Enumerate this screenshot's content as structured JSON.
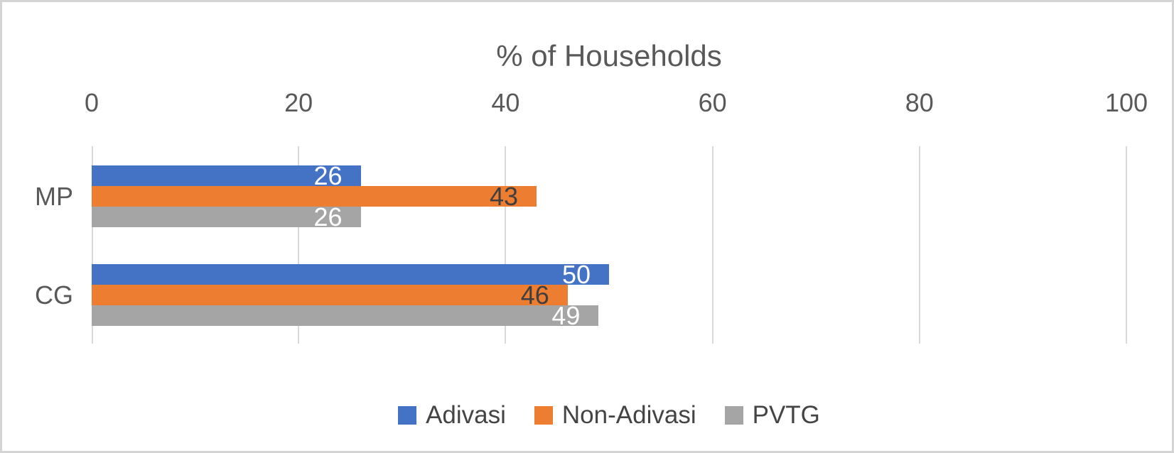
{
  "chart_data": {
    "type": "bar",
    "orientation": "horizontal",
    "title": "% of Households",
    "categories": [
      "MP",
      "CG"
    ],
    "series": [
      {
        "name": "Adivasi",
        "color": "#4472C4",
        "label_color": "#FFFFFF",
        "values": [
          26,
          50
        ]
      },
      {
        "name": "Non-Adivasi",
        "color": "#ED7D31",
        "label_color": "#3F3F3F",
        "values": [
          43,
          46
        ]
      },
      {
        "name": "PVTG",
        "color": "#A5A5A5",
        "label_color": "#FFFFFF",
        "values": [
          26,
          49
        ]
      }
    ],
    "x_axis": {
      "min": 0,
      "max": 100,
      "ticks": [
        0,
        20,
        40,
        60,
        80,
        100
      ]
    },
    "grid": true,
    "gridline_color": "#D9D9D9",
    "data_labels": "inside-end",
    "legend_position": "bottom",
    "text_color": "#595959"
  }
}
